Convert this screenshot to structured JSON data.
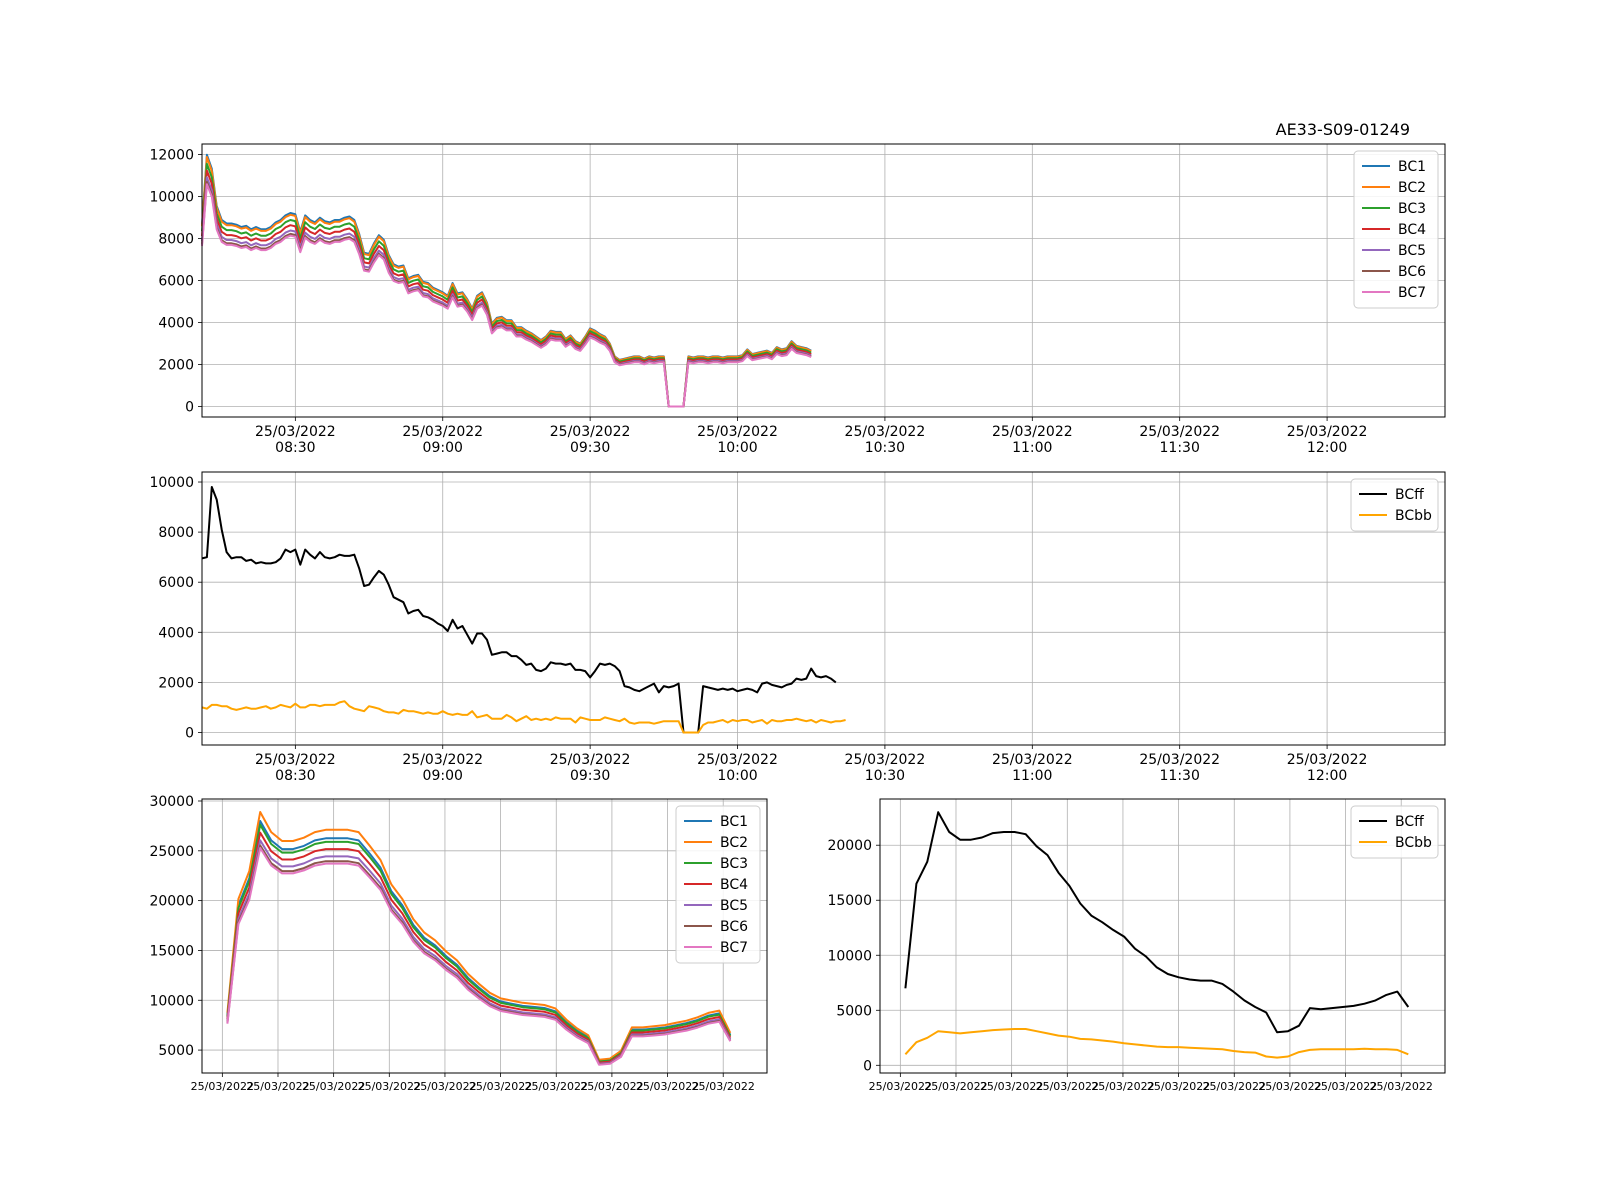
{
  "figure_title": "AE33-S09-01249",
  "colors": {
    "BC1": "#1f77b4",
    "BC2": "#ff7f0e",
    "BC3": "#2ca02c",
    "BC4": "#d62728",
    "BC5": "#9467bd",
    "BC6": "#8c564b",
    "BC7": "#e377c2",
    "BCff": "#000000",
    "BCbb": "#ffa500"
  },
  "chart_data": [
    {
      "type": "line",
      "title": "",
      "x_kind": "time",
      "xlim": [
        "2022-03-25 08:11",
        "2022-03-25 12:24"
      ],
      "ylim": [
        -500,
        12500
      ],
      "yticks": [
        0,
        2000,
        4000,
        6000,
        8000,
        10000,
        12000
      ],
      "xticks": [
        {
          "date": "25/03/2022",
          "time": "08:30"
        },
        {
          "date": "25/03/2022",
          "time": "09:00"
        },
        {
          "date": "25/03/2022",
          "time": "09:30"
        },
        {
          "date": "25/03/2022",
          "time": "10:00"
        },
        {
          "date": "25/03/2022",
          "time": "10:30"
        },
        {
          "date": "25/03/2022",
          "time": "11:00"
        },
        {
          "date": "25/03/2022",
          "time": "11:30"
        },
        {
          "date": "25/03/2022",
          "time": "12:00"
        }
      ],
      "grid": true,
      "legend_position": "upper right",
      "x_start": "2022-03-25 08:11",
      "x_step_min": 1,
      "base": [
        7800,
        10800,
        10200,
        8600,
        8000,
        7850,
        7850,
        7800,
        7700,
        7750,
        7600,
        7700,
        7600,
        7600,
        7700,
        7900,
        8000,
        8200,
        8300,
        8250,
        7500,
        8200,
        8000,
        7900,
        8100,
        7950,
        7900,
        8000,
        8000,
        8100,
        8150,
        8000,
        7400,
        6600,
        6550,
        7000,
        7350,
        7150,
        6500,
        6100,
        6000,
        6050,
        5500,
        5600,
        5650,
        5350,
        5300,
        5100,
        5000,
        4900,
        4750,
        5300,
        4850,
        4900,
        4600,
        4200,
        4750,
        4900,
        4450,
        3550,
        3800,
        3850,
        3700,
        3700,
        3400,
        3400,
        3250,
        3150,
        3000,
        2850,
        3000,
        3250,
        3200,
        3200,
        2900,
        3050,
        2800,
        2700,
        3000,
        3350,
        3250,
        3100,
        3000,
        2700,
        2150,
        2000,
        2050,
        2100,
        2150,
        2150,
        2050,
        2150,
        2100,
        2150,
        2150,
        0,
        0,
        0,
        0,
        2150,
        2100,
        2150,
        2150,
        2100,
        2150,
        2150,
        2100,
        2150,
        2150,
        2150,
        2200,
        2450,
        2250,
        2300,
        2350,
        2400,
        2300,
        2550,
        2450,
        2500,
        2800,
        2600,
        2550,
        2500,
        2400
      ],
      "scales": {
        "BC1": 1.11,
        "BC2": 1.1,
        "BC3": 1.07,
        "BC4": 1.04,
        "BC5": 1.01,
        "BC6": 0.99,
        "BC7": 0.98
      },
      "series": [
        {
          "name": "BC1"
        },
        {
          "name": "BC2"
        },
        {
          "name": "BC3"
        },
        {
          "name": "BC4"
        },
        {
          "name": "BC5"
        },
        {
          "name": "BC6"
        },
        {
          "name": "BC7"
        }
      ]
    },
    {
      "type": "line",
      "title": "",
      "x_kind": "time",
      "xlim": [
        "2022-03-25 08:11",
        "2022-03-25 12:24"
      ],
      "ylim": [
        -500,
        10400
      ],
      "yticks": [
        0,
        2000,
        4000,
        6000,
        8000,
        10000
      ],
      "xticks": [
        {
          "date": "25/03/2022",
          "time": "08:30"
        },
        {
          "date": "25/03/2022",
          "time": "09:00"
        },
        {
          "date": "25/03/2022",
          "time": "09:30"
        },
        {
          "date": "25/03/2022",
          "time": "10:00"
        },
        {
          "date": "25/03/2022",
          "time": "10:30"
        },
        {
          "date": "25/03/2022",
          "time": "11:00"
        },
        {
          "date": "25/03/2022",
          "time": "11:30"
        },
        {
          "date": "25/03/2022",
          "time": "12:00"
        }
      ],
      "grid": true,
      "legend_position": "upper right",
      "x_start": "2022-03-25 08:11",
      "x_step_min": 1,
      "series": [
        {
          "name": "BCff",
          "values": [
            6950,
            7000,
            9800,
            9300,
            8100,
            7200,
            6950,
            7000,
            7000,
            6850,
            6900,
            6750,
            6800,
            6750,
            6750,
            6800,
            6950,
            7300,
            7200,
            7300,
            6700,
            7300,
            7100,
            6950,
            7200,
            7000,
            6950,
            7000,
            7100,
            7050,
            7050,
            7100,
            6550,
            5850,
            5900,
            6200,
            6450,
            6300,
            5900,
            5400,
            5300,
            5200,
            4750,
            4850,
            4900,
            4650,
            4600,
            4500,
            4350,
            4250,
            4050,
            4500,
            4150,
            4250,
            3900,
            3550,
            3950,
            3950,
            3700,
            3100,
            3150,
            3200,
            3200,
            3050,
            3050,
            2900,
            2700,
            2750,
            2500,
            2450,
            2550,
            2800,
            2750,
            2750,
            2700,
            2750,
            2500,
            2500,
            2450,
            2200,
            2450,
            2750,
            2700,
            2750,
            2650,
            2450,
            1850,
            1800,
            1700,
            1650,
            1750,
            1850,
            1950,
            1600,
            1850,
            1800,
            1850,
            1950,
            0,
            0,
            0,
            0,
            1850,
            1800,
            1750,
            1700,
            1750,
            1700,
            1750,
            1650,
            1700,
            1750,
            1700,
            1600,
            1950,
            2000,
            1900,
            1850,
            1800,
            1900,
            1950,
            2150,
            2100,
            2150,
            2550,
            2250,
            2200,
            2250,
            2150,
            2000
          ]
        },
        {
          "name": "BCbb",
          "values": [
            1000,
            950,
            1100,
            1100,
            1050,
            1050,
            950,
            900,
            950,
            1000,
            950,
            950,
            1000,
            1050,
            950,
            1000,
            1100,
            1050,
            1000,
            1150,
            1000,
            1000,
            1100,
            1100,
            1050,
            1100,
            1100,
            1100,
            1200,
            1250,
            1050,
            950,
            900,
            850,
            1050,
            1000,
            950,
            850,
            800,
            800,
            750,
            900,
            850,
            850,
            800,
            750,
            800,
            750,
            750,
            850,
            750,
            700,
            750,
            700,
            700,
            850,
            600,
            650,
            700,
            550,
            550,
            550,
            700,
            600,
            450,
            550,
            650,
            500,
            550,
            500,
            550,
            500,
            600,
            550,
            550,
            550,
            400,
            600,
            550,
            500,
            500,
            500,
            600,
            550,
            500,
            450,
            550,
            400,
            350,
            400,
            400,
            400,
            350,
            400,
            450,
            450,
            450,
            450,
            0,
            0,
            0,
            0,
            300,
            400,
            400,
            450,
            500,
            400,
            500,
            450,
            500,
            500,
            400,
            450,
            500,
            350,
            500,
            450,
            450,
            500,
            500,
            550,
            500,
            450,
            500,
            400,
            500,
            450,
            400,
            450,
            450,
            500
          ]
        }
      ]
    },
    {
      "type": "line",
      "title": "",
      "x_kind": "time",
      "ylim": [
        2700,
        30200
      ],
      "yticks": [
        5000,
        10000,
        15000,
        20000,
        25000,
        30000
      ],
      "xticks": [
        "25/03/2022",
        "25/03/2022",
        "25/03/2022",
        "25/03/2022",
        "25/03/2022",
        "25/03/2022",
        "25/03/2022",
        "25/03/2022",
        "25/03/2022",
        "25/03/2022"
      ],
      "grid": true,
      "legend_position": "upper right",
      "base": [
        7800,
        18000,
        20500,
        25800,
        24000,
        23200,
        23200,
        23500,
        24000,
        24200,
        24200,
        24200,
        24000,
        22800,
        21500,
        19300,
        18000,
        16200,
        15000,
        14300,
        13300,
        12500,
        11300,
        10400,
        9600,
        9100,
        8900,
        8700,
        8600,
        8500,
        8200,
        7200,
        6400,
        5800,
        3600,
        3700,
        4400,
        6500,
        6500,
        6600,
        6700,
        6900,
        7100,
        7400,
        7800,
        8000,
        6000
      ],
      "scales": {
        "BC1": 1.085,
        "BC2": 1.12,
        "BC3": 1.07,
        "BC4": 1.04,
        "BC5": 1.01,
        "BC6": 0.99,
        "BC7": 0.98
      },
      "series": [
        {
          "name": "BC1"
        },
        {
          "name": "BC2"
        },
        {
          "name": "BC3"
        },
        {
          "name": "BC4"
        },
        {
          "name": "BC5"
        },
        {
          "name": "BC6"
        },
        {
          "name": "BC7"
        }
      ]
    },
    {
      "type": "line",
      "title": "",
      "x_kind": "time",
      "ylim": [
        -700,
        24200
      ],
      "yticks": [
        0,
        5000,
        10000,
        15000,
        20000
      ],
      "xticks": [
        "25/03/2022",
        "25/03/2022",
        "25/03/2022",
        "25/03/2022",
        "25/03/2022",
        "25/03/2022",
        "25/03/2022",
        "25/03/2022",
        "25/03/2022",
        "25/03/2022"
      ],
      "grid": true,
      "legend_position": "upper right",
      "series": [
        {
          "name": "BCff",
          "values": [
            7000,
            16500,
            18500,
            23000,
            21200,
            20500,
            20500,
            20700,
            21100,
            21200,
            21200,
            21000,
            19900,
            19100,
            17500,
            16300,
            14700,
            13600,
            13000,
            12300,
            11700,
            10600,
            9900,
            8900,
            8300,
            8000,
            7800,
            7700,
            7700,
            7400,
            6700,
            5900,
            5300,
            4800,
            3000,
            3100,
            3600,
            5200,
            5100,
            5200,
            5300,
            5400,
            5600,
            5900,
            6400,
            6700,
            5300
          ]
        },
        {
          "name": "BCbb",
          "values": [
            1000,
            2100,
            2500,
            3100,
            3000,
            2900,
            3000,
            3100,
            3200,
            3250,
            3300,
            3300,
            3100,
            2900,
            2700,
            2600,
            2400,
            2350,
            2250,
            2150,
            2000,
            1900,
            1800,
            1700,
            1650,
            1650,
            1600,
            1550,
            1500,
            1450,
            1300,
            1200,
            1150,
            800,
            700,
            800,
            1200,
            1400,
            1450,
            1450,
            1450,
            1450,
            1500,
            1450,
            1450,
            1400,
            1000
          ]
        }
      ]
    }
  ]
}
